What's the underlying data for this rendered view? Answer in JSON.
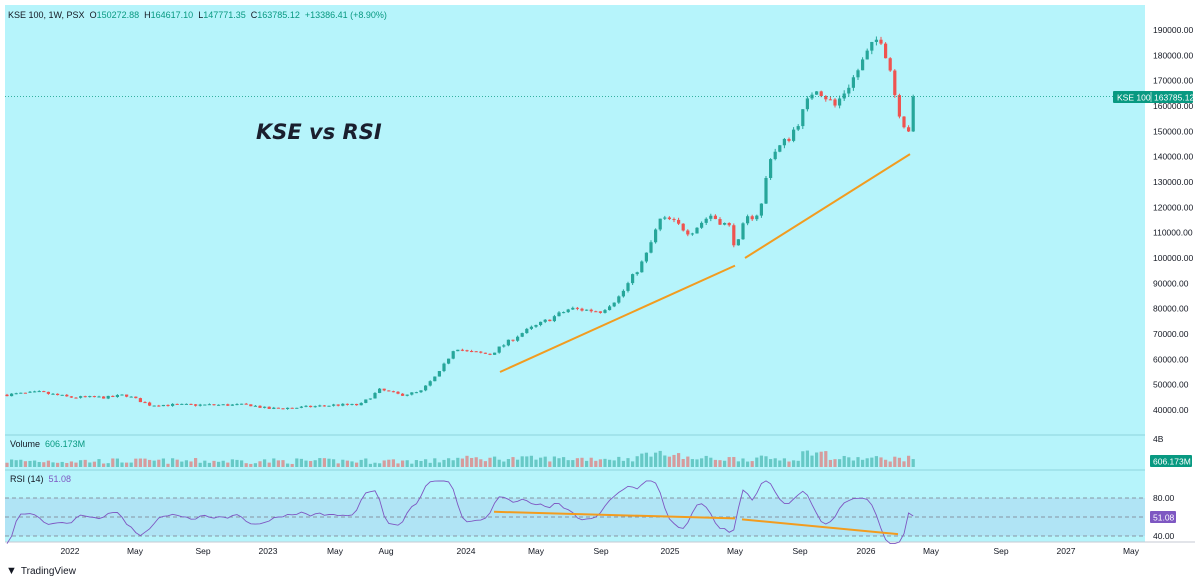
{
  "header": {
    "symbol": "KSE 100, 1W, PSX",
    "o_label": "O",
    "o": "150272.88",
    "h_label": "H",
    "h": "164617.10",
    "l_label": "L",
    "l": "147771.35",
    "c_label": "C",
    "c": "163785.12",
    "change": "+13386.41 (+8.90%)"
  },
  "annotation": "KSE vs RSI",
  "price_tag": {
    "name": "KSE 100",
    "value": "163785.12"
  },
  "volume": {
    "label": "Volume",
    "value": "606.173M",
    "axis_label": "4B"
  },
  "rsi": {
    "label": "RSI (14)",
    "value": "51.08",
    "ticks": [
      "80.00",
      "60.00",
      "40.00"
    ]
  },
  "brand": "TradingView",
  "colors": {
    "up": "#26a69a",
    "down": "#ef5350",
    "rsi": "#7e57c2",
    "trend": "#f29c1f",
    "bg": "#b6f4fb"
  },
  "chart_data": {
    "type": "candlestick",
    "title": "KSE 100, 1W, PSX",
    "x_ticks": [
      "2022",
      "May",
      "Sep",
      "2023",
      "May",
      "Aug",
      "2024",
      "May",
      "Sep",
      "2025",
      "May",
      "Sep",
      "2026",
      "May",
      "Sep",
      "2027",
      "May"
    ],
    "y_ticks": [
      "190000.00",
      "180000.00",
      "170000.00",
      "160000.00",
      "150000.00",
      "140000.00",
      "130000.00",
      "120000.00",
      "110000.00",
      "100000.00",
      "90000.00",
      "80000.00",
      "70000.00",
      "60000.00",
      "50000.00",
      "40000.00"
    ],
    "ylim": [
      35000,
      195000
    ],
    "last_close": 163785.12,
    "price_trendlines": [
      {
        "from": [
          "2024-02",
          55000
        ],
        "to": [
          "2025-04",
          97000
        ]
      },
      {
        "from": [
          "2025-05",
          100000
        ],
        "to": [
          "2026-03",
          141000
        ]
      }
    ],
    "rsi_trendlines": [
      {
        "from": [
          "2024-02",
          55.5
        ],
        "to": [
          "2025-04",
          48.5
        ]
      },
      {
        "from": [
          "2025-05",
          47.5
        ],
        "to": [
          "2026-03",
          32
        ]
      }
    ],
    "rsi_levels": [
      70,
      50,
      30
    ],
    "rsi_last": 51.08,
    "volume_last": "606.173M"
  }
}
